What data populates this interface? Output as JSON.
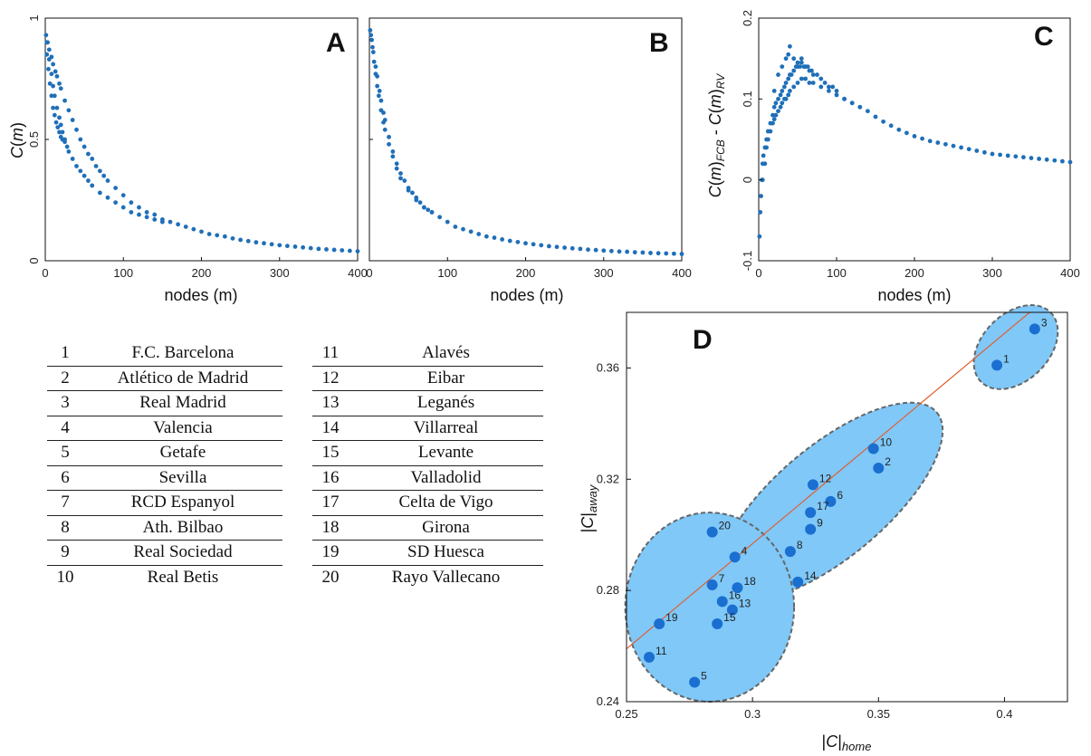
{
  "chart_data": [
    {
      "panel": "A",
      "type": "scatter",
      "xlabel": "nodes (m)",
      "ylabel": "C(m)",
      "xlim": [
        0,
        400
      ],
      "ylim": [
        0,
        1
      ],
      "xticks": [
        "0",
        "100",
        "200",
        "300",
        "400"
      ],
      "yticks": [
        "0",
        "0.5",
        "1"
      ],
      "color": "#1f6fb8",
      "series": [
        {
          "x": [
            1,
            3,
            5,
            8,
            10,
            13,
            15,
            18,
            20,
            25,
            30,
            35,
            40,
            45,
            50,
            55,
            60,
            65,
            70,
            75,
            80,
            90,
            100,
            110,
            120,
            130,
            140,
            150,
            160,
            170,
            180,
            190,
            200,
            210,
            220,
            230,
            240,
            250,
            260,
            270,
            280,
            290,
            300,
            310,
            320,
            330,
            340,
            350,
            360,
            370,
            380,
            390,
            400
          ],
          "y": [
            0.93,
            0.9,
            0.87,
            0.84,
            0.81,
            0.78,
            0.76,
            0.73,
            0.71,
            0.66,
            0.62,
            0.58,
            0.54,
            0.5,
            0.47,
            0.44,
            0.42,
            0.39,
            0.37,
            0.35,
            0.33,
            0.3,
            0.27,
            0.24,
            0.22,
            0.2,
            0.19,
            0.17,
            0.16,
            0.15,
            0.14,
            0.13,
            0.12,
            0.11,
            0.105,
            0.1,
            0.092,
            0.086,
            0.081,
            0.076,
            0.072,
            0.068,
            0.064,
            0.061,
            0.058,
            0.055,
            0.052,
            0.049,
            0.047,
            0.045,
            0.043,
            0.041,
            0.039
          ]
        },
        {
          "x": [
            2,
            5,
            8,
            10,
            12,
            15,
            18,
            20,
            22,
            25,
            28,
            30,
            35,
            40,
            45,
            50,
            55,
            60,
            70,
            80,
            90,
            100,
            110,
            120,
            130,
            140,
            150
          ],
          "y": [
            0.9,
            0.83,
            0.77,
            0.72,
            0.68,
            0.63,
            0.59,
            0.56,
            0.53,
            0.5,
            0.47,
            0.45,
            0.42,
            0.39,
            0.37,
            0.35,
            0.33,
            0.31,
            0.28,
            0.26,
            0.24,
            0.22,
            0.2,
            0.19,
            0.18,
            0.17,
            0.16
          ]
        },
        {
          "x": [
            2,
            4,
            6,
            8,
            10,
            12,
            14,
            16,
            18,
            20,
            22,
            25
          ],
          "y": [
            0.85,
            0.79,
            0.73,
            0.68,
            0.63,
            0.6,
            0.57,
            0.55,
            0.53,
            0.51,
            0.5,
            0.49
          ]
        }
      ]
    },
    {
      "panel": "B",
      "type": "scatter",
      "xlabel": "nodes (m)",
      "xlim": [
        0,
        400
      ],
      "ylim": [
        0,
        1
      ],
      "xticks": [
        "0",
        "100",
        "200",
        "300",
        "400"
      ],
      "color": "#1f6fb8",
      "series": [
        {
          "x": [
            1,
            3,
            5,
            8,
            10,
            13,
            15,
            18,
            20,
            25,
            30,
            35,
            40,
            45,
            50,
            55,
            60,
            65,
            70,
            75,
            80,
            90,
            100,
            110,
            120,
            130,
            140,
            150,
            160,
            170,
            180,
            190,
            200,
            210,
            220,
            230,
            240,
            250,
            260,
            270,
            280,
            290,
            300,
            310,
            320,
            330,
            340,
            350,
            360,
            370,
            380,
            390,
            400
          ],
          "y": [
            0.95,
            0.91,
            0.86,
            0.8,
            0.76,
            0.7,
            0.66,
            0.61,
            0.58,
            0.51,
            0.45,
            0.4,
            0.36,
            0.33,
            0.3,
            0.28,
            0.26,
            0.24,
            0.22,
            0.21,
            0.2,
            0.18,
            0.16,
            0.14,
            0.13,
            0.12,
            0.11,
            0.1,
            0.095,
            0.088,
            0.082,
            0.077,
            0.072,
            0.068,
            0.064,
            0.06,
            0.057,
            0.054,
            0.051,
            0.049,
            0.046,
            0.044,
            0.042,
            0.04,
            0.038,
            0.037,
            0.035,
            0.034,
            0.032,
            0.031,
            0.03,
            0.029,
            0.028
          ]
        },
        {
          "x": [
            2,
            4,
            6,
            8,
            10,
            12,
            15,
            18,
            20,
            25,
            30,
            35,
            40,
            50,
            60,
            70,
            80
          ],
          "y": [
            0.93,
            0.88,
            0.82,
            0.77,
            0.72,
            0.68,
            0.62,
            0.57,
            0.54,
            0.48,
            0.43,
            0.38,
            0.34,
            0.29,
            0.25,
            0.22,
            0.2
          ]
        }
      ]
    },
    {
      "panel": "C",
      "type": "scatter",
      "xlabel": "nodes (m)",
      "ylabel": "C(m)FCB - C(m)RV",
      "xlim": [
        0,
        400
      ],
      "ylim": [
        -0.1,
        0.2
      ],
      "xticks": [
        "0",
        "100",
        "200",
        "300",
        "400"
      ],
      "yticks": [
        "-0.1",
        "0",
        "0.1",
        "0.2"
      ],
      "color": "#1f6fb8",
      "series": [
        {
          "x": [
            1,
            2,
            3,
            4,
            5,
            6,
            8,
            10,
            12,
            15,
            18,
            20,
            22,
            25,
            28,
            30,
            33,
            35,
            38,
            40,
            42,
            45,
            48,
            50,
            53,
            55,
            58,
            60,
            63,
            65,
            68,
            70,
            75,
            80,
            85,
            90,
            95,
            100,
            110,
            120,
            130,
            140,
            150,
            160,
            170,
            180,
            190,
            200,
            210,
            220,
            230,
            240,
            250,
            260,
            270,
            280,
            290,
            300,
            310,
            320,
            330,
            340,
            350,
            360,
            370,
            380,
            390,
            400
          ],
          "y": [
            -0.07,
            -0.04,
            -0.02,
            0.0,
            0.02,
            0.03,
            0.04,
            0.05,
            0.06,
            0.07,
            0.08,
            0.09,
            0.095,
            0.1,
            0.105,
            0.11,
            0.115,
            0.12,
            0.125,
            0.13,
            0.13,
            0.135,
            0.14,
            0.14,
            0.14,
            0.145,
            0.14,
            0.14,
            0.14,
            0.135,
            0.135,
            0.13,
            0.13,
            0.125,
            0.12,
            0.115,
            0.115,
            0.11,
            0.1,
            0.095,
            0.09,
            0.085,
            0.078,
            0.072,
            0.067,
            0.062,
            0.058,
            0.054,
            0.051,
            0.048,
            0.046,
            0.044,
            0.042,
            0.04,
            0.038,
            0.036,
            0.034,
            0.032,
            0.031,
            0.03,
            0.029,
            0.028,
            0.027,
            0.026,
            0.025,
            0.024,
            0.023,
            0.022
          ]
        },
        {
          "x": [
            5,
            8,
            10,
            12,
            15,
            18,
            20,
            22,
            25,
            28,
            30,
            33,
            35,
            38,
            40,
            45,
            50,
            55,
            60,
            65,
            70,
            80,
            90,
            100,
            110,
            120,
            130
          ],
          "y": [
            0.0,
            0.02,
            0.04,
            0.05,
            0.06,
            0.07,
            0.075,
            0.08,
            0.085,
            0.09,
            0.095,
            0.1,
            0.1,
            0.105,
            0.11,
            0.115,
            0.12,
            0.125,
            0.125,
            0.12,
            0.12,
            0.115,
            0.11,
            0.105,
            0.1,
            0.095,
            0.09
          ]
        },
        {
          "x": [
            20,
            25,
            30,
            35,
            38,
            40,
            45,
            50,
            55,
            60
          ],
          "y": [
            0.11,
            0.13,
            0.14,
            0.15,
            0.155,
            0.165,
            0.15,
            0.145,
            0.15,
            0.14
          ]
        }
      ]
    },
    {
      "panel": "D",
      "type": "scatter",
      "xlabel": "|C|home",
      "ylabel": "|C|away",
      "xlim": [
        0.25,
        0.425
      ],
      "ylim": [
        0.24,
        0.38
      ],
      "xticks": [
        "0.25",
        "0.3",
        "0.35",
        "0.4"
      ],
      "yticks": [
        "0.24",
        "0.28",
        "0.32",
        "0.36"
      ],
      "point_color": "#1a6fd0",
      "cluster_fill": "#7fc8f8",
      "line_color": "#e06030",
      "trend_line": {
        "x": [
          0.25,
          0.41
        ],
        "y": [
          0.259,
          0.38
        ]
      },
      "points": [
        {
          "label": "1",
          "x": 0.397,
          "y": 0.361
        },
        {
          "label": "2",
          "x": 0.35,
          "y": 0.324
        },
        {
          "label": "3",
          "x": 0.412,
          "y": 0.374
        },
        {
          "label": "4",
          "x": 0.293,
          "y": 0.292
        },
        {
          "label": "5",
          "x": 0.277,
          "y": 0.247
        },
        {
          "label": "6",
          "x": 0.331,
          "y": 0.312
        },
        {
          "label": "7",
          "x": 0.284,
          "y": 0.282
        },
        {
          "label": "8",
          "x": 0.315,
          "y": 0.294
        },
        {
          "label": "9",
          "x": 0.323,
          "y": 0.302
        },
        {
          "label": "10",
          "x": 0.348,
          "y": 0.331
        },
        {
          "label": "11",
          "x": 0.259,
          "y": 0.256
        },
        {
          "label": "12",
          "x": 0.324,
          "y": 0.318
        },
        {
          "label": "13",
          "x": 0.292,
          "y": 0.273
        },
        {
          "label": "14",
          "x": 0.318,
          "y": 0.283
        },
        {
          "label": "15",
          "x": 0.286,
          "y": 0.268
        },
        {
          "label": "16",
          "x": 0.288,
          "y": 0.276
        },
        {
          "label": "17",
          "x": 0.323,
          "y": 0.308
        },
        {
          "label": "18",
          "x": 0.294,
          "y": 0.281
        },
        {
          "label": "19",
          "x": 0.263,
          "y": 0.268
        },
        {
          "label": "20",
          "x": 0.284,
          "y": 0.301
        }
      ],
      "clusters": [
        {
          "name": "top",
          "cx": 0.4045,
          "cy": 0.3675,
          "rx": 0.0195,
          "ry": 0.012,
          "angle_deg": -45
        },
        {
          "name": "middle",
          "cx": 0.331,
          "cy": 0.312,
          "rx": 0.055,
          "ry": 0.02,
          "angle_deg": -40
        },
        {
          "name": "bottom",
          "cx": 0.283,
          "cy": 0.274,
          "rx": 0.0335,
          "ry": 0.034,
          "angle_deg": 0
        }
      ]
    }
  ],
  "table": {
    "left": [
      {
        "num": "1",
        "name": "F.C. Barcelona"
      },
      {
        "num": "2",
        "name": "Atlético de Madrid"
      },
      {
        "num": "3",
        "name": "Real Madrid"
      },
      {
        "num": "4",
        "name": "Valencia"
      },
      {
        "num": "5",
        "name": "Getafe"
      },
      {
        "num": "6",
        "name": "Sevilla"
      },
      {
        "num": "7",
        "name": "RCD Espanyol"
      },
      {
        "num": "8",
        "name": "Ath. Bilbao"
      },
      {
        "num": "9",
        "name": "Real Sociedad"
      },
      {
        "num": "10",
        "name": "Real Betis"
      }
    ],
    "right": [
      {
        "num": "11",
        "name": "Alavés"
      },
      {
        "num": "12",
        "name": "Eibar"
      },
      {
        "num": "13",
        "name": "Leganés"
      },
      {
        "num": "14",
        "name": "Villarreal"
      },
      {
        "num": "15",
        "name": "Levante"
      },
      {
        "num": "16",
        "name": "Valladolid"
      },
      {
        "num": "17",
        "name": "Celta de Vigo"
      },
      {
        "num": "18",
        "name": "Girona"
      },
      {
        "num": "19",
        "name": "SD Huesca"
      },
      {
        "num": "20",
        "name": "Rayo Vallecano"
      }
    ]
  }
}
